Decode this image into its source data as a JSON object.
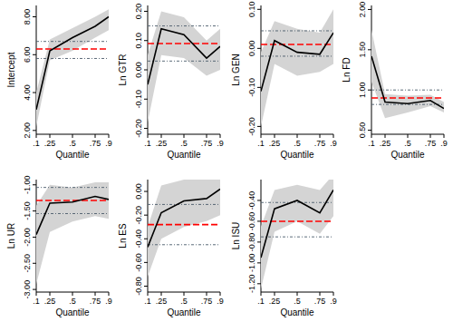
{
  "chart_data": [
    {
      "type": "line",
      "y_label": "Intercept",
      "x_label": "Quantile",
      "x": [
        0.1,
        0.25,
        0.5,
        0.75,
        0.9
      ],
      "xlim": [
        0.1,
        0.9
      ],
      "xticks": [
        {
          "value": 0.1,
          "label": ".1"
        },
        {
          "value": 0.25,
          "label": ".25"
        },
        {
          "value": 0.5,
          "label": ".5"
        },
        {
          "value": 0.75,
          "label": ".75"
        },
        {
          "value": 0.9,
          "label": ".9"
        }
      ],
      "ylim": [
        1.8,
        8.6
      ],
      "yticks": [
        {
          "value": 2,
          "label": "2.00"
        },
        {
          "value": 4,
          "label": "4.00"
        },
        {
          "value": 6,
          "label": "6.00"
        },
        {
          "value": 8,
          "label": "8.00"
        }
      ],
      "series": [
        {
          "values": [
            3.1,
            6.2,
            6.9,
            7.5,
            8.0
          ],
          "lower": [
            2.2,
            5.7,
            6.2,
            6.9,
            7.3
          ],
          "upper": [
            4.0,
            6.8,
            7.4,
            8.0,
            8.4
          ],
          "color": "#000000",
          "line_style": "solid"
        },
        {
          "values": [
            6.3,
            6.3,
            6.3,
            6.3,
            6.3
          ],
          "color": "#ff0000",
          "line_style": "dashed"
        },
        {
          "values": [
            5.8,
            5.8,
            5.8,
            5.8,
            5.8
          ],
          "color": "#4a5a6a",
          "line_style": "dashdot"
        },
        {
          "values": [
            6.7,
            6.7,
            6.7,
            6.7,
            6.7
          ],
          "color": "#4a5a6a",
          "line_style": "dashdot"
        }
      ]
    },
    {
      "type": "line",
      "y_label": "Ln GTR",
      "x_label": "Quantile",
      "x": [
        0.1,
        0.25,
        0.5,
        0.75,
        0.9
      ],
      "xlim": [
        0.1,
        0.9
      ],
      "xticks": [
        {
          "value": 0.1,
          "label": ".1"
        },
        {
          "value": 0.25,
          "label": ".25"
        },
        {
          "value": 0.5,
          "label": ".5"
        },
        {
          "value": 0.75,
          "label": ".75"
        },
        {
          "value": 0.9,
          "label": ".9"
        }
      ],
      "ylim": [
        -0.22,
        0.22
      ],
      "yticks": [
        {
          "value": -0.2,
          "label": "-0.20"
        },
        {
          "value": -0.1,
          "label": "-0.10"
        },
        {
          "value": 0,
          "label": "0.00"
        },
        {
          "value": 0.1,
          "label": "0.10"
        },
        {
          "value": 0.2,
          "label": "0.20"
        }
      ],
      "series": [
        {
          "values": [
            -0.05,
            0.14,
            0.12,
            0.04,
            0.08
          ],
          "lower": [
            -0.18,
            0.05,
            0.04,
            -0.02,
            0.0
          ],
          "upper": [
            0.05,
            0.2,
            0.18,
            0.1,
            0.14
          ],
          "color": "#000000",
          "line_style": "solid"
        },
        {
          "values": [
            0.09,
            0.09,
            0.09,
            0.09,
            0.09
          ],
          "color": "#ff0000",
          "line_style": "dashed"
        },
        {
          "values": [
            0.03,
            0.03,
            0.03,
            0.03,
            0.03
          ],
          "color": "#4a5a6a",
          "line_style": "dashdot"
        },
        {
          "values": [
            0.15,
            0.15,
            0.15,
            0.15,
            0.15
          ],
          "color": "#4a5a6a",
          "line_style": "dashdot"
        }
      ]
    },
    {
      "type": "line",
      "y_label": "Ln GEN",
      "x_label": "Quantile",
      "x": [
        0.1,
        0.25,
        0.5,
        0.75,
        0.9
      ],
      "xlim": [
        0.1,
        0.9
      ],
      "xticks": [
        {
          "value": 0.1,
          "label": ".1"
        },
        {
          "value": 0.25,
          "label": ".25"
        },
        {
          "value": 0.5,
          "label": ".5"
        },
        {
          "value": 0.75,
          "label": ".75"
        },
        {
          "value": 0.9,
          "label": ".9"
        }
      ],
      "ylim": [
        -0.22,
        0.11
      ],
      "yticks": [
        {
          "value": -0.2,
          "label": "-0.20"
        },
        {
          "value": -0.1,
          "label": "-0.10"
        },
        {
          "value": 0,
          "label": "0.00"
        },
        {
          "value": 0.1,
          "label": "0.10"
        }
      ],
      "series": [
        {
          "values": [
            -0.11,
            0.02,
            -0.01,
            -0.015,
            0.04
          ],
          "lower": [
            -0.2,
            -0.04,
            -0.07,
            -0.06,
            -0.04
          ],
          "upper": [
            -0.01,
            0.07,
            0.05,
            0.04,
            0.1
          ],
          "color": "#000000",
          "line_style": "solid"
        },
        {
          "values": [
            0.01,
            0.01,
            0.01,
            0.01,
            0.01
          ],
          "color": "#ff0000",
          "line_style": "dashed"
        },
        {
          "values": [
            -0.02,
            -0.02,
            -0.02,
            -0.02,
            -0.02
          ],
          "color": "#4a5a6a",
          "line_style": "dashdot"
        },
        {
          "values": [
            0.045,
            0.045,
            0.045,
            0.045,
            0.045
          ],
          "color": "#4a5a6a",
          "line_style": "dashdot"
        }
      ]
    },
    {
      "type": "line",
      "y_label": "Ln FD",
      "x_label": "Quantile",
      "x": [
        0.1,
        0.25,
        0.5,
        0.75,
        0.9
      ],
      "xlim": [
        0.1,
        0.9
      ],
      "xticks": [
        {
          "value": 0.1,
          "label": ".1"
        },
        {
          "value": 0.25,
          "label": ".25"
        },
        {
          "value": 0.5,
          "label": ".5"
        },
        {
          "value": 0.75,
          "label": ".75"
        },
        {
          "value": 0.9,
          "label": ".9"
        }
      ],
      "ylim": [
        0.45,
        2.05
      ],
      "yticks": [
        {
          "value": 0.5,
          "label": "0.50"
        },
        {
          "value": 1,
          "label": "1.00"
        },
        {
          "value": 1.5,
          "label": "1.50"
        },
        {
          "value": 2,
          "label": "2.00"
        }
      ],
      "series": [
        {
          "values": [
            1.42,
            0.85,
            0.83,
            0.87,
            0.77
          ],
          "lower": [
            1.1,
            0.65,
            0.72,
            0.8,
            0.72
          ],
          "upper": [
            1.75,
            0.95,
            0.93,
            0.94,
            0.85
          ],
          "color": "#000000",
          "line_style": "solid"
        },
        {
          "values": [
            0.9,
            0.9,
            0.9,
            0.9,
            0.9
          ],
          "color": "#ff0000",
          "line_style": "dashed"
        },
        {
          "values": [
            0.82,
            0.82,
            0.82,
            0.82,
            0.82
          ],
          "color": "#4a5a6a",
          "line_style": "dashdot"
        },
        {
          "values": [
            1.0,
            1.0,
            1.0,
            1.0,
            1.0
          ],
          "color": "#4a5a6a",
          "line_style": "dashdot"
        }
      ]
    },
    {
      "type": "line",
      "y_label": "Ln UR",
      "x_label": "Quantile",
      "x": [
        0.1,
        0.25,
        0.5,
        0.75,
        0.9
      ],
      "xlim": [
        0.1,
        0.9
      ],
      "xticks": [
        {
          "value": 0.1,
          "label": ".1"
        },
        {
          "value": 0.25,
          "label": ".25"
        },
        {
          "value": 0.5,
          "label": ".5"
        },
        {
          "value": 0.75,
          "label": ".75"
        },
        {
          "value": 0.9,
          "label": ".9"
        }
      ],
      "ylim": [
        -3.05,
        -0.9
      ],
      "yticks": [
        {
          "value": -3,
          "label": "-3.00"
        },
        {
          "value": -2.5,
          "label": "-2.50"
        },
        {
          "value": -2,
          "label": "-2.00"
        },
        {
          "value": -1.5,
          "label": "-1.50"
        },
        {
          "value": -1,
          "label": "-1.00"
        }
      ],
      "series": [
        {
          "values": [
            -1.95,
            -1.35,
            -1.33,
            -1.22,
            -1.28
          ],
          "lower": [
            -2.9,
            -1.9,
            -1.7,
            -1.6,
            -1.65
          ],
          "upper": [
            -1.4,
            -1.0,
            -1.05,
            -0.95,
            -0.95
          ],
          "color": "#000000",
          "line_style": "solid"
        },
        {
          "values": [
            -1.3,
            -1.3,
            -1.3,
            -1.3,
            -1.3
          ],
          "color": "#ff0000",
          "line_style": "dashed"
        },
        {
          "values": [
            -1.55,
            -1.55,
            -1.55,
            -1.55,
            -1.55
          ],
          "color": "#4a5a6a",
          "line_style": "dashdot"
        },
        {
          "values": [
            -1.05,
            -1.05,
            -1.05,
            -1.05,
            -1.05
          ],
          "color": "#4a5a6a",
          "line_style": "dashdot"
        }
      ]
    },
    {
      "type": "line",
      "y_label": "Ln ES",
      "x_label": "Quantile",
      "x": [
        0.1,
        0.25,
        0.5,
        0.75,
        0.9
      ],
      "xlim": [
        0.1,
        0.9
      ],
      "xticks": [
        {
          "value": 0.1,
          "label": ".1"
        },
        {
          "value": 0.25,
          "label": ".25"
        },
        {
          "value": 0.5,
          "label": ".5"
        },
        {
          "value": 0.75,
          "label": ".75"
        },
        {
          "value": 0.9,
          "label": ".9"
        }
      ],
      "ylim": [
        -0.85,
        0.1
      ],
      "yticks": [
        {
          "value": -0.8,
          "label": "-0.80"
        },
        {
          "value": -0.6,
          "label": "-0.60"
        },
        {
          "value": -0.4,
          "label": "-0.40"
        },
        {
          "value": -0.2,
          "label": "-0.20"
        },
        {
          "value": 0,
          "label": "0.00"
        }
      ],
      "series": [
        {
          "values": [
            -0.47,
            -0.18,
            -0.08,
            -0.06,
            0.02
          ],
          "lower": [
            -0.72,
            -0.4,
            -0.3,
            -0.25,
            -0.2
          ],
          "upper": [
            -0.3,
            0.05,
            0.1,
            0.1,
            0.1
          ],
          "color": "#000000",
          "line_style": "solid"
        },
        {
          "values": [
            -0.28,
            -0.28,
            -0.28,
            -0.28,
            -0.28
          ],
          "color": "#ff0000",
          "line_style": "dashed"
        },
        {
          "values": [
            -0.45,
            -0.45,
            -0.45,
            -0.45,
            -0.45
          ],
          "color": "#4a5a6a",
          "line_style": "dashdot"
        },
        {
          "values": [
            -0.11,
            -0.11,
            -0.11,
            -0.11,
            -0.11
          ],
          "color": "#4a5a6a",
          "line_style": "dashdot"
        }
      ]
    },
    {
      "type": "line",
      "y_label": "Ln ISU",
      "x_label": "Quantile",
      "x": [
        0.1,
        0.25,
        0.5,
        0.75,
        0.9
      ],
      "xlim": [
        0.1,
        0.9
      ],
      "xticks": [
        {
          "value": 0.1,
          "label": ".1"
        },
        {
          "value": 0.25,
          "label": ".25"
        },
        {
          "value": 0.5,
          "label": ".5"
        },
        {
          "value": 0.75,
          "label": ".75"
        },
        {
          "value": 0.9,
          "label": ".9"
        }
      ],
      "ylim": [
        -1.28,
        -0.2
      ],
      "yticks": [
        {
          "value": -1.2,
          "label": "-1.20"
        },
        {
          "value": -1,
          "label": "-1.00"
        },
        {
          "value": -0.8,
          "label": "-0.80"
        },
        {
          "value": -0.6,
          "label": "-0.60"
        },
        {
          "value": -0.4,
          "label": "-0.40"
        }
      ],
      "series": [
        {
          "values": [
            -0.95,
            -0.48,
            -0.4,
            -0.52,
            -0.3
          ],
          "lower": [
            -1.25,
            -0.7,
            -0.6,
            -0.72,
            -0.55
          ],
          "upper": [
            -0.65,
            -0.3,
            -0.25,
            -0.3,
            -0.15
          ],
          "color": "#000000",
          "line_style": "solid"
        },
        {
          "values": [
            -0.6,
            -0.6,
            -0.6,
            -0.6,
            -0.6
          ],
          "color": "#ff0000",
          "line_style": "dashed"
        },
        {
          "values": [
            -0.75,
            -0.75,
            -0.75,
            -0.75,
            -0.75
          ],
          "color": "#4a5a6a",
          "line_style": "dashdot"
        },
        {
          "values": [
            -0.42,
            -0.42,
            -0.42,
            -0.42,
            -0.42
          ],
          "color": "#4a5a6a",
          "line_style": "dashdot"
        }
      ]
    }
  ]
}
